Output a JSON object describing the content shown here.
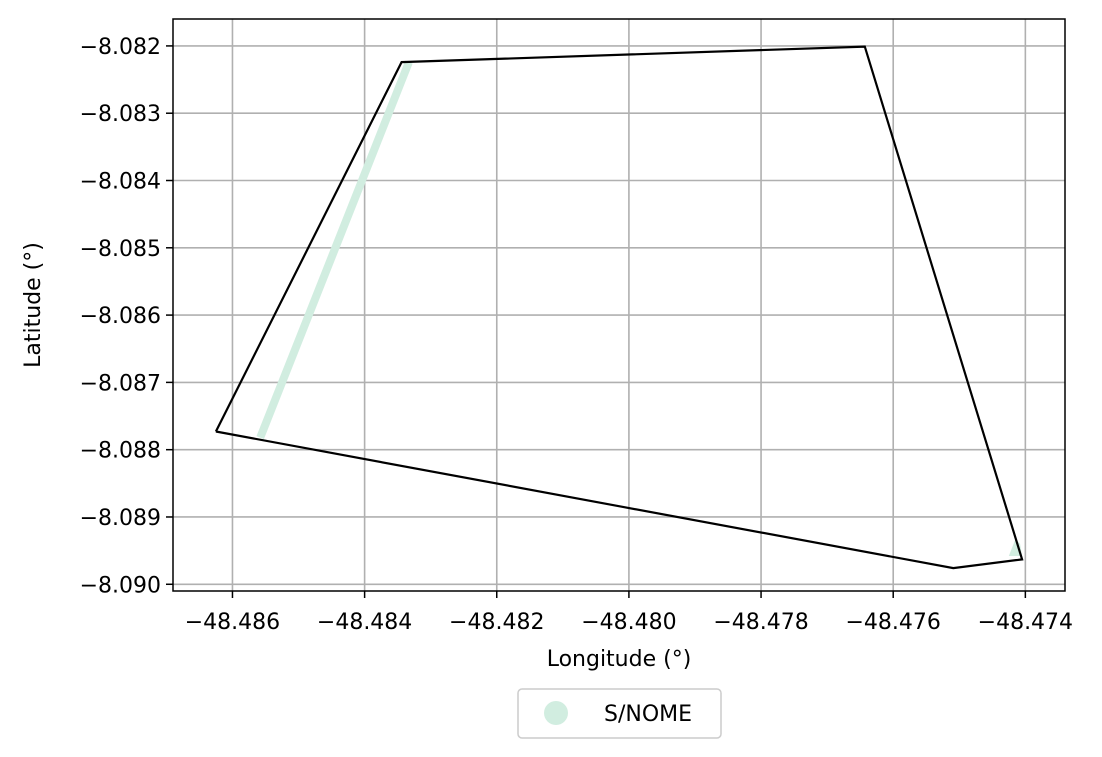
{
  "chart_data": {
    "type": "map",
    "xlabel": "Longitude (°)",
    "ylabel": "Latitude (°)",
    "xlim": [
      -48.4869,
      -48.4734
    ],
    "ylim": [
      -8.0901,
      -8.0816
    ],
    "x_ticks": [
      -48.486,
      -48.484,
      -48.482,
      -48.48,
      -48.478,
      -48.476,
      -48.474
    ],
    "x_tick_labels": [
      "−48.486",
      "−48.484",
      "−48.482",
      "−48.480",
      "−48.478",
      "−48.476",
      "−48.474"
    ],
    "y_ticks": [
      -8.082,
      -8.083,
      -8.084,
      -8.085,
      -8.086,
      -8.087,
      -8.088,
      -8.089,
      -8.09
    ],
    "y_tick_labels": [
      "−8.082",
      "−8.083",
      "−8.084",
      "−8.085",
      "−8.086",
      "−8.087",
      "−8.088",
      "−8.089",
      "−8.090"
    ],
    "grid": true,
    "boundary": {
      "color": "#000000",
      "points": [
        [
          -48.48625,
          -8.08773
        ],
        [
          -48.48344,
          -8.08224
        ],
        [
          -48.47643,
          -8.08201
        ],
        [
          -48.47405,
          -8.08963
        ],
        [
          -48.47509,
          -8.08976
        ],
        [
          -48.48625,
          -8.08773
        ]
      ]
    },
    "series": [
      {
        "name": "S/NOME",
        "color": "#d1ede0",
        "features": [
          {
            "kind": "line",
            "points": [
              [
                -48.48558,
                -8.08782
              ],
              [
                -48.48333,
                -8.08224
              ]
            ]
          },
          {
            "kind": "polygon",
            "points": [
              [
                -48.47425,
                -8.08958
              ],
              [
                -48.47405,
                -8.08958
              ],
              [
                -48.47408,
                -8.0894
              ],
              [
                -48.47415,
                -8.08933
              ]
            ]
          }
        ]
      }
    ],
    "legend": {
      "position": "bottom-center"
    }
  }
}
